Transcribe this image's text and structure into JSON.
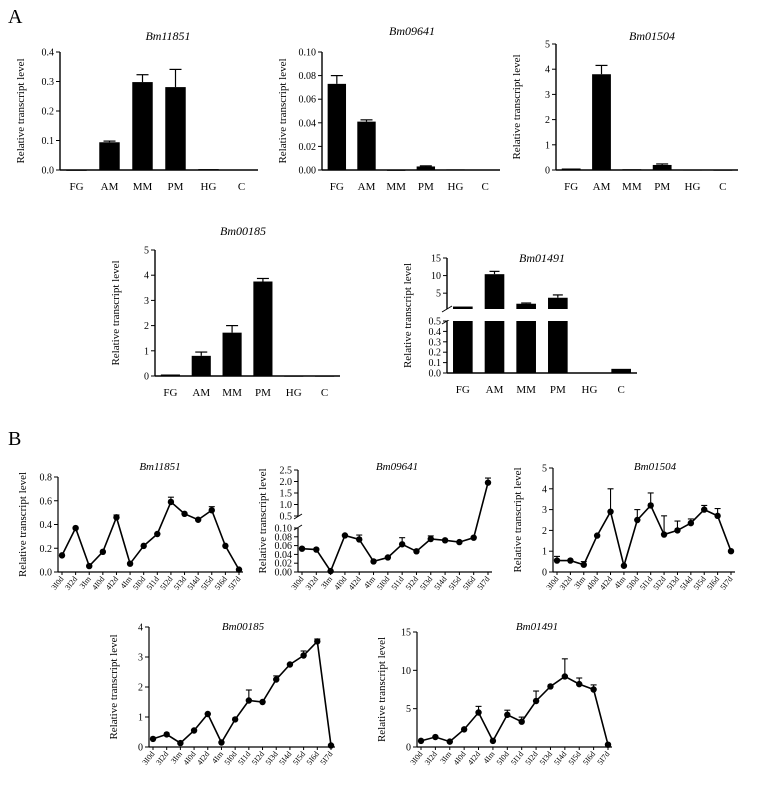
{
  "panel_labels": {
    "a": "A",
    "b": "B"
  },
  "axis_label": "Relative transcript level",
  "chart_data": [
    {
      "id": "a1",
      "type": "bar",
      "title": "Bm11851",
      "ylabel": "Relative transcript level",
      "categories": [
        "FG",
        "AM",
        "MM",
        "PM",
        "HG",
        "C"
      ],
      "values": [
        0,
        0.094,
        0.298,
        0.281,
        0.003,
        0.0015
      ],
      "errors": [
        0,
        0.004,
        0.025,
        0.06,
        0,
        0
      ],
      "ylim": [
        0,
        0.4
      ],
      "yticks": [
        0.0,
        0.1,
        0.2,
        0.3,
        0.4
      ],
      "ytick_labels": [
        "0.0",
        "0.1",
        "0.2",
        "0.3",
        "0.4"
      ]
    },
    {
      "id": "a2",
      "type": "bar",
      "title": "Bm09641",
      "ylabel": "Relative transcript level",
      "categories": [
        "FG",
        "AM",
        "MM",
        "PM",
        "HG",
        "C"
      ],
      "values": [
        0.073,
        0.041,
        0,
        0.003,
        0.0005,
        0.0003
      ],
      "errors": [
        0.007,
        0.0015,
        0,
        0.0005,
        0,
        0
      ],
      "ylim": [
        0,
        0.1
      ],
      "yticks": [
        0,
        0.02,
        0.04,
        0.06,
        0.08,
        0.1
      ],
      "ytick_labels": [
        "0.00",
        "0.02",
        "0.04",
        "0.06",
        "0.08",
        "0.10"
      ]
    },
    {
      "id": "a3",
      "type": "bar",
      "title": "Bm01504",
      "ylabel": "Relative transcript level",
      "categories": [
        "FG",
        "AM",
        "MM",
        "PM",
        "HG",
        "C"
      ],
      "values": [
        0.06,
        3.8,
        0.03,
        0.2,
        0.01,
        0.005
      ],
      "errors": [
        0,
        0.35,
        0,
        0.04,
        0,
        0
      ],
      "ylim": [
        0,
        5
      ],
      "yticks": [
        0,
        1,
        2,
        3,
        4,
        5
      ],
      "ytick_labels": [
        "0",
        "1",
        "2",
        "3",
        "4",
        "5"
      ]
    },
    {
      "id": "a4",
      "type": "bar",
      "title": "Bm00185",
      "ylabel": "Relative transcript level",
      "categories": [
        "FG",
        "AM",
        "MM",
        "PM",
        "HG",
        "C"
      ],
      "values": [
        0.06,
        0.8,
        1.72,
        3.75,
        0.005,
        0.005
      ],
      "errors": [
        0,
        0.15,
        0.28,
        0.12,
        0,
        0
      ],
      "ylim": [
        0,
        5
      ],
      "yticks": [
        0,
        1,
        2,
        3,
        4,
        5
      ],
      "ytick_labels": [
        "0",
        "1",
        "2",
        "3",
        "4",
        "5"
      ]
    },
    {
      "id": "a5",
      "type": "bar",
      "title": "Bm01491",
      "ylabel": "Relative transcript level",
      "broken_axis": true,
      "categories": [
        "FG",
        "AM",
        "MM",
        "PM",
        "HG",
        "C"
      ],
      "values": [
        1.2,
        10.4,
        2,
        3.7,
        0.005,
        0.04
      ],
      "errors": [
        0,
        0.8,
        0.2,
        0.8,
        0,
        0
      ],
      "ylim_lower": [
        0,
        0.5
      ],
      "yticks_lower": [
        0,
        0.1,
        0.2,
        0.3,
        0.4,
        0.5
      ],
      "ytick_labels_lower": [
        "0.0",
        "0.1",
        "0.2",
        "0.3",
        "0.4",
        "0.5"
      ],
      "ylim_upper": [
        0.5,
        15
      ],
      "yticks_upper": [
        5,
        10,
        15
      ],
      "ytick_labels_upper": [
        "5",
        "10",
        "15"
      ]
    },
    {
      "id": "b1",
      "type": "line",
      "title": "Bm11851",
      "ylabel": "Relative transcript level",
      "categories": [
        "3I0d",
        "3I2d",
        "3Im",
        "4I0d",
        "4I2d",
        "4Im",
        "5I0d",
        "5I1d",
        "5I2d",
        "5I3d",
        "5I4d",
        "5I5d",
        "5I6d",
        "5I7d"
      ],
      "values": [
        0.14,
        0.37,
        0.05,
        0.17,
        0.46,
        0.07,
        0.22,
        0.32,
        0.59,
        0.49,
        0.44,
        0.52,
        0.22,
        0.02
      ],
      "errors": [
        0,
        0,
        0,
        0,
        0.02,
        0,
        0,
        0,
        0.04,
        0,
        0,
        0.03,
        0,
        0
      ],
      "ylim": [
        0,
        0.8
      ],
      "yticks": [
        0,
        0.2,
        0.4,
        0.6,
        0.8
      ],
      "ytick_labels": [
        "0.0",
        "0.2",
        "0.4",
        "0.6",
        "0.8"
      ]
    },
    {
      "id": "b2",
      "type": "line",
      "title": "Bm09641",
      "ylabel": "Relative transcript level",
      "broken_axis": true,
      "categories": [
        "3I0d",
        "3I2d",
        "3Im",
        "4I0d",
        "4I2d",
        "4Im",
        "5I0d",
        "5I1d",
        "5I2d",
        "5I3d",
        "5I4d",
        "5I5d",
        "5I6d",
        "5I7d"
      ],
      "values": [
        0.053,
        0.051,
        0.002,
        0.083,
        0.074,
        0.024,
        0.033,
        0.063,
        0.047,
        0.075,
        0.072,
        0.068,
        0.078,
        1.95
      ],
      "errors": [
        0,
        0,
        0,
        0,
        0.01,
        0,
        0,
        0.015,
        0,
        0.007,
        0,
        0,
        0,
        0.2
      ],
      "ylim_lower": [
        0,
        0.1
      ],
      "yticks_lower": [
        0,
        0.02,
        0.04,
        0.06,
        0.08,
        0.1
      ],
      "ytick_labels_lower": [
        "0.00",
        "0.02",
        "0.04",
        "0.06",
        "0.08",
        "0.10"
      ],
      "ylim_upper": [
        0.5,
        2.5
      ],
      "yticks_upper": [
        0.5,
        1,
        1.5,
        2,
        2.5
      ],
      "ytick_labels_upper": [
        "0.5",
        "1.0",
        "1.5",
        "2.0",
        "2.5"
      ]
    },
    {
      "id": "b3",
      "type": "line",
      "title": "Bm01504",
      "ylabel": "Relative transcript level",
      "categories": [
        "3I0d",
        "3I2d",
        "3Im",
        "4I0d",
        "4I2d",
        "4Im",
        "5I0d",
        "5I1d",
        "5I2d",
        "5I3d",
        "5I4d",
        "5I5d",
        "5I6d",
        "5I7d"
      ],
      "values": [
        0.55,
        0.55,
        0.35,
        1.75,
        2.9,
        0.3,
        2.5,
        3.2,
        1.8,
        2.0,
        2.35,
        3.0,
        2.7,
        1.0
      ],
      "errors": [
        0.2,
        0,
        0.15,
        0,
        1.1,
        0,
        0.5,
        0.6,
        0.9,
        0.45,
        0.2,
        0.2,
        0.35,
        0
      ],
      "ylim": [
        0,
        5
      ],
      "yticks": [
        0,
        1,
        2,
        3,
        4,
        5
      ],
      "ytick_labels": [
        "0",
        "1",
        "2",
        "3",
        "4",
        "5"
      ]
    },
    {
      "id": "b4",
      "type": "line",
      "title": "Bm00185",
      "ylabel": "Relative transcript level",
      "categories": [
        "3I0d",
        "3I2d",
        "3Im",
        "4I0d",
        "4I2d",
        "4Im",
        "5I0d",
        "5I1d",
        "5I2d",
        "5I3d",
        "5I4d",
        "5I5d",
        "5I6d",
        "5I7d"
      ],
      "values": [
        0.27,
        0.42,
        0.13,
        0.55,
        1.1,
        0.15,
        0.92,
        1.55,
        1.5,
        2.25,
        2.75,
        3.05,
        3.52,
        0.05
      ],
      "errors": [
        0,
        0,
        0,
        0,
        0,
        0,
        0,
        0.35,
        0,
        0.12,
        0,
        0.15,
        0.08,
        0
      ],
      "ylim": [
        0,
        4
      ],
      "yticks": [
        0,
        1,
        2,
        3,
        4
      ],
      "ytick_labels": [
        "0",
        "1",
        "2",
        "3",
        "4"
      ]
    },
    {
      "id": "b5",
      "type": "line",
      "title": "Bm01491",
      "ylabel": "Relative transcript level",
      "categories": [
        "3I0d",
        "3I2d",
        "3Im",
        "4I0d",
        "4I2d",
        "4Im",
        "5I0d",
        "5I1d",
        "5I2d",
        "5I3d",
        "5I4d",
        "5I5d",
        "5I6d",
        "5I7d"
      ],
      "values": [
        0.8,
        1.3,
        0.7,
        2.3,
        4.5,
        0.8,
        4.2,
        3.3,
        6.0,
        7.9,
        9.2,
        8.2,
        7.5,
        0.3
      ],
      "errors": [
        0,
        0,
        0,
        0,
        0.8,
        0,
        0.6,
        0.6,
        1.3,
        0,
        2.3,
        0.8,
        0.6,
        0
      ],
      "ylim": [
        0,
        15
      ],
      "yticks": [
        0,
        5,
        10,
        15
      ],
      "ytick_labels": [
        "0",
        "5",
        "10",
        "15"
      ]
    }
  ]
}
